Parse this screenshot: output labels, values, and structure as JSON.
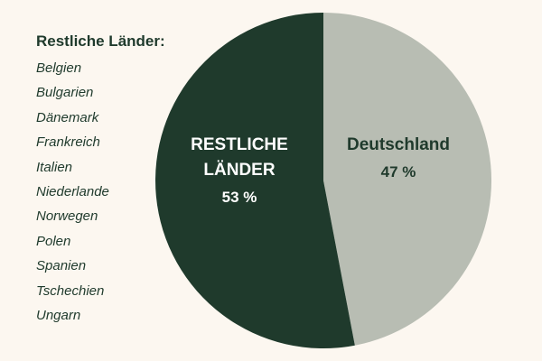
{
  "legend": {
    "title": "Restliche Länder:",
    "items": [
      "Belgien",
      "Bulgarien",
      "Dänemark",
      "Frankreich",
      "Italien",
      "Niederlande",
      "Norwegen",
      "Polen",
      "Spanien",
      "Tschechien",
      "Ungarn"
    ]
  },
  "chart_data": {
    "type": "pie",
    "slices": [
      {
        "label": "Deutschland",
        "value": 47,
        "value_label": "47 %",
        "color": "#b8bdb3",
        "text_color": "#1f3a2c"
      },
      {
        "label_lines": [
          "RESTLICHE",
          "LÄNDER"
        ],
        "value": 53,
        "value_label": "53 %",
        "color": "#1f3a2c",
        "text_color": "#ffffff"
      }
    ],
    "start": "top",
    "direction": "clockwise"
  }
}
